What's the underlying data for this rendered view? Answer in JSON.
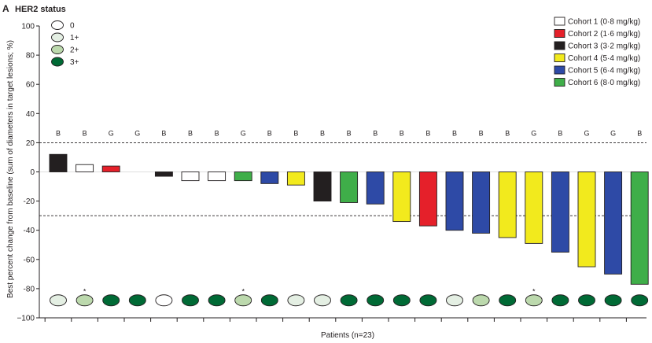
{
  "chart_data": {
    "type": "bar",
    "panel_label": "A",
    "her2_legend_title": "HER2 status",
    "ylabel": "Best percent change from baseline (sum of diameters in target lesions; %)",
    "xlabel": "Patients (n=23)",
    "ylim": [
      -100,
      100
    ],
    "y_ticks": [
      100,
      80,
      60,
      40,
      20,
      0,
      -20,
      -40,
      -60,
      -80,
      -100
    ],
    "y_tick_labels": [
      "100",
      "80",
      "60",
      "40",
      "20",
      "0",
      "-20",
      "-40",
      "-60",
      "-80",
      "−100"
    ],
    "reference_lines": [
      20,
      -30
    ],
    "cohorts": [
      {
        "name": "Cohort 1 (0·8 mg/kg)",
        "color": "#ffffff"
      },
      {
        "name": "Cohort 2 (1·6 mg/kg)",
        "color": "#e5202a"
      },
      {
        "name": "Cohort 3 (3·2 mg/kg)",
        "color": "#231f20"
      },
      {
        "name": "Cohort 4 (5·4 mg/kg)",
        "color": "#f2ea1d"
      },
      {
        "name": "Cohort 5 (6·4 mg/kg)",
        "color": "#2e4aa6"
      },
      {
        "name": "Cohort 6 (8·0 mg/kg)",
        "color": "#3fae49"
      }
    ],
    "her2_levels": [
      {
        "label": "0",
        "color": "#ffffff"
      },
      {
        "label": "1+",
        "color": "#e4efe3"
      },
      {
        "label": "2+",
        "color": "#bcd9ad"
      },
      {
        "label": "3+",
        "color": "#006a35"
      }
    ],
    "patients": [
      {
        "value": 12,
        "cohort": 2,
        "letter": "B",
        "her2": 1,
        "star": false
      },
      {
        "value": 5,
        "cohort": 0,
        "letter": "B",
        "her2": 2,
        "star": true
      },
      {
        "value": 4,
        "cohort": 1,
        "letter": "G",
        "her2": 3,
        "star": false
      },
      {
        "value": 0,
        "cohort": 0,
        "letter": "G",
        "her2": 3,
        "star": false
      },
      {
        "value": -3,
        "cohort": 2,
        "letter": "B",
        "her2": 0,
        "star": false
      },
      {
        "value": -6,
        "cohort": 0,
        "letter": "B",
        "her2": 3,
        "star": false
      },
      {
        "value": -6,
        "cohort": 0,
        "letter": "B",
        "her2": 3,
        "star": false
      },
      {
        "value": -6,
        "cohort": 5,
        "letter": "G",
        "her2": 2,
        "star": true
      },
      {
        "value": -8,
        "cohort": 4,
        "letter": "B",
        "her2": 3,
        "star": false
      },
      {
        "value": -9,
        "cohort": 3,
        "letter": "B",
        "her2": 1,
        "star": false
      },
      {
        "value": -20,
        "cohort": 2,
        "letter": "B",
        "her2": 1,
        "star": false
      },
      {
        "value": -21,
        "cohort": 5,
        "letter": "B",
        "her2": 3,
        "star": false
      },
      {
        "value": -22,
        "cohort": 4,
        "letter": "B",
        "her2": 3,
        "star": false
      },
      {
        "value": -34,
        "cohort": 3,
        "letter": "B",
        "her2": 3,
        "star": false
      },
      {
        "value": -37,
        "cohort": 1,
        "letter": "B",
        "her2": 3,
        "star": false
      },
      {
        "value": -40,
        "cohort": 4,
        "letter": "B",
        "her2": 1,
        "star": false
      },
      {
        "value": -42,
        "cohort": 4,
        "letter": "B",
        "her2": 2,
        "star": false
      },
      {
        "value": -45,
        "cohort": 3,
        "letter": "B",
        "her2": 3,
        "star": false
      },
      {
        "value": -49,
        "cohort": 3,
        "letter": "G",
        "her2": 2,
        "star": true
      },
      {
        "value": -55,
        "cohort": 4,
        "letter": "B",
        "her2": 3,
        "star": false
      },
      {
        "value": -65,
        "cohort": 3,
        "letter": "G",
        "her2": 3,
        "star": false
      },
      {
        "value": -70,
        "cohort": 4,
        "letter": "G",
        "her2": 3,
        "star": false
      },
      {
        "value": -77,
        "cohort": 5,
        "letter": "B",
        "her2": 3,
        "star": false
      }
    ],
    "letter_row_value": 27,
    "her2_row_value": -88,
    "grid": false,
    "legend_placement": "top-right"
  }
}
